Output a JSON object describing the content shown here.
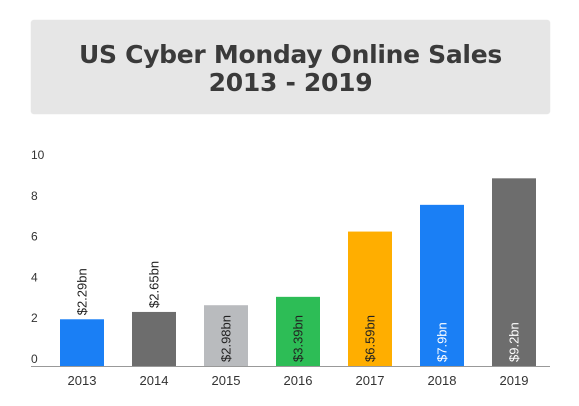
{
  "title": {
    "line1": "US Cyber Monday Online Sales",
    "line2": "2013 - 2019"
  },
  "chart_data": {
    "type": "bar",
    "title": "US Cyber Monday Online Sales 2013 - 2019",
    "xlabel": "",
    "ylabel": "",
    "ylim": [
      0,
      10
    ],
    "yticks": [
      0,
      2,
      4,
      6,
      8,
      10
    ],
    "grid": false,
    "legend": "none",
    "categories": [
      "2013",
      "2014",
      "2015",
      "2016",
      "2017",
      "2018",
      "2019"
    ],
    "values": [
      2.29,
      2.65,
      2.98,
      3.39,
      6.59,
      7.9,
      9.2
    ],
    "labels": [
      "$2.29bn",
      "$2.65bn",
      "$2.98bn",
      "$3.39bn",
      "$6.59bn",
      "$7.9bn",
      "$9.2bn"
    ],
    "colors": [
      "#1a7ff5",
      "#6d6d6d",
      "#b9bbbe",
      "#2dbd56",
      "#ffae00",
      "#1a7ff5",
      "#6d6d6d"
    ],
    "label_positions": [
      "above",
      "above",
      "inside",
      "inside",
      "inside",
      "inside",
      "inside"
    ],
    "label_colors": [
      "#222222",
      "#222222",
      "#222222",
      "#222222",
      "#222222",
      "#ffffff",
      "#ffffff"
    ]
  }
}
